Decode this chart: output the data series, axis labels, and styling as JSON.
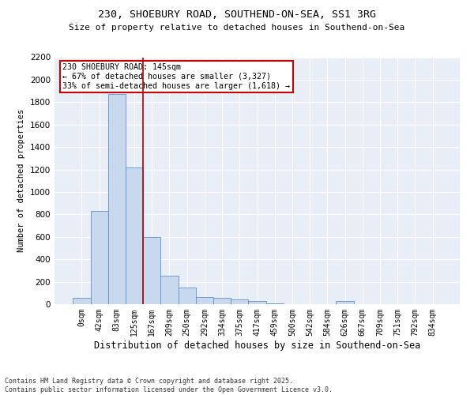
{
  "title_line1": "230, SHOEBURY ROAD, SOUTHEND-ON-SEA, SS1 3RG",
  "title_line2": "Size of property relative to detached houses in Southend-on-Sea",
  "xlabel": "Distribution of detached houses by size in Southend-on-Sea",
  "ylabel": "Number of detached properties",
  "bar_color": "#c8d8ee",
  "bar_edge_color": "#6090c8",
  "annotation_line_color": "#aa0000",
  "annotation_box_color": "#cc0000",
  "background_color": "#e8eef8",
  "grid_color": "#ffffff",
  "categories": [
    "0sqm",
    "42sqm",
    "83sqm",
    "125sqm",
    "167sqm",
    "209sqm",
    "250sqm",
    "292sqm",
    "334sqm",
    "375sqm",
    "417sqm",
    "459sqm",
    "500sqm",
    "542sqm",
    "584sqm",
    "626sqm",
    "667sqm",
    "709sqm",
    "751sqm",
    "792sqm",
    "834sqm"
  ],
  "values": [
    55,
    830,
    1870,
    1220,
    600,
    250,
    150,
    65,
    55,
    40,
    25,
    5,
    0,
    0,
    0,
    25,
    0,
    0,
    0,
    0,
    0
  ],
  "ylim": [
    0,
    2200
  ],
  "yticks": [
    0,
    200,
    400,
    600,
    800,
    1000,
    1200,
    1400,
    1600,
    1800,
    2000,
    2200
  ],
  "property_label": "230 SHOEBURY ROAD: 145sqm",
  "annotation_line1": "← 67% of detached houses are smaller (3,327)",
  "annotation_line2": "33% of semi-detached houses are larger (1,618) →",
  "vline_x": 3.5,
  "footer_line1": "Contains HM Land Registry data © Crown copyright and database right 2025.",
  "footer_line2": "Contains public sector information licensed under the Open Government Licence v3.0."
}
